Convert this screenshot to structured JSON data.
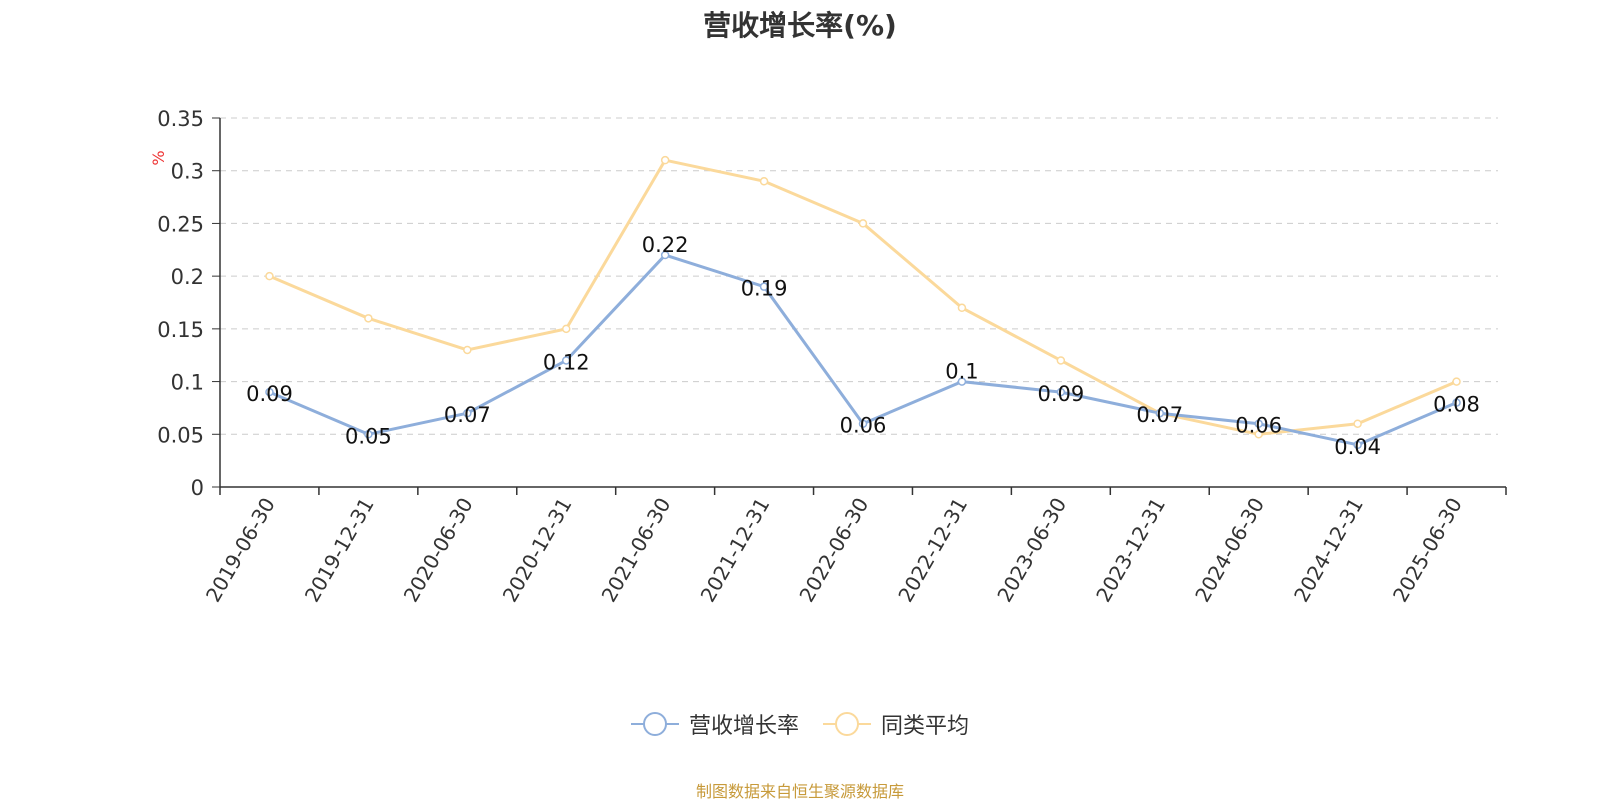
{
  "title": "营收增长率(%)",
  "source_note": "制图数据来自恒生聚源数据库",
  "colors": {
    "series1": "#8eaedb",
    "series2": "#fbd99b",
    "grid": "#cccccc",
    "axis": "#333333",
    "unit": "#ee3333",
    "source": "#c79a3a"
  },
  "chart_data": {
    "type": "line",
    "title": "营收增长率(%)",
    "ylabel": "%",
    "xlabel": "",
    "ylim": [
      0,
      0.35
    ],
    "yticks": [
      "0",
      "0.05",
      "0.1",
      "0.15",
      "0.2",
      "0.25",
      "0.3",
      "0.35"
    ],
    "grid": true,
    "legend_position": "bottom-center",
    "categories": [
      "2019-06-30",
      "2019-12-31",
      "2020-06-30",
      "2020-12-31",
      "2021-06-30",
      "2021-12-31",
      "2022-06-30",
      "2022-12-31",
      "2023-06-30",
      "2023-12-31",
      "2024-06-30",
      "2024-12-31",
      "2025-06-30"
    ],
    "series": [
      {
        "name": "营收增长率",
        "values": [
          0.09,
          0.05,
          0.07,
          0.12,
          0.22,
          0.19,
          0.06,
          0.1,
          0.09,
          0.07,
          0.06,
          0.04,
          0.08
        ],
        "labels": [
          "0.09",
          "0.05",
          "0.07",
          "0.12",
          "0.22",
          "0.19",
          "0.06",
          "0.1",
          "0.09",
          "0.07",
          "0.06",
          "0.04",
          "0.08"
        ]
      },
      {
        "name": "同类平均",
        "values": [
          0.2,
          0.16,
          0.13,
          0.15,
          0.31,
          0.29,
          0.25,
          0.17,
          0.12,
          0.07,
          0.05,
          0.06,
          0.1
        ]
      }
    ]
  }
}
